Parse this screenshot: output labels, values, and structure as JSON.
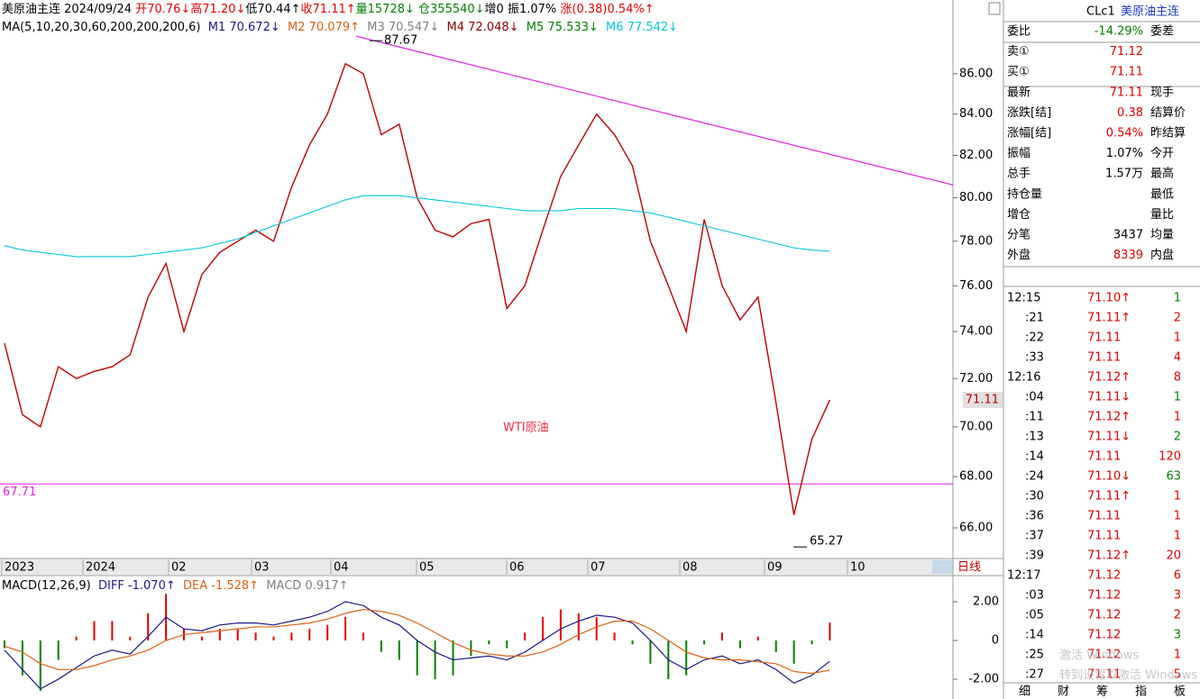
{
  "header": {
    "quote_line": [
      {
        "text": "美原油主连 2024/09/24 ",
        "color": "#000000"
      },
      {
        "text": "开70.76↓",
        "color": "#e00000"
      },
      {
        "text": "高71.20↓",
        "color": "#e00000"
      },
      {
        "text": "低70.44↑",
        "color": "#000000"
      },
      {
        "text": "收71.11↑",
        "color": "#e00000"
      },
      {
        "text": "量15728↓",
        "color": "#008000"
      },
      {
        "text": " 仓355540↓",
        "color": "#008000"
      },
      {
        "text": "增0 振1.07% ",
        "color": "#000000"
      },
      {
        "text": "涨(0.38)0.54%↑",
        "color": "#e00000"
      }
    ],
    "ma_line": [
      {
        "text": "MA(5,10,20,30,60,200,200,200,6)",
        "color": "#000000"
      },
      {
        "text": "  M1 70.672↓",
        "color": "#1a1a8c"
      },
      {
        "text": "  M2 70.079↑",
        "color": "#e06010"
      },
      {
        "text": "  M3 70.547↓",
        "color": "#808080"
      },
      {
        "text": "  M4 72.048↓",
        "color": "#8b0000"
      },
      {
        "text": "  M5 75.533↓",
        "color": "#008000"
      },
      {
        "text": "  M6 77.542↓",
        "color": "#00c8d8"
      }
    ]
  },
  "chart_data": [
    {
      "type": "line",
      "title": "WTI原油",
      "log_scale": true,
      "ylim": [
        64.9,
        88.93
      ],
      "yticks": [
        {
          "value": 86,
          "label": "86.00"
        },
        {
          "value": 84,
          "label": "84.00"
        },
        {
          "value": 82,
          "label": "82.00"
        },
        {
          "value": 80,
          "label": "80.00"
        },
        {
          "value": 78,
          "label": "78.00"
        },
        {
          "value": 76,
          "label": "76.00"
        },
        {
          "value": 74,
          "label": "74.00"
        },
        {
          "value": 72,
          "label": "72.00"
        },
        {
          "value": 70,
          "label": "70.00"
        },
        {
          "value": 68,
          "label": "68.00"
        },
        {
          "value": 66,
          "label": "66.00"
        }
      ],
      "x_labels": [
        "2023",
        "2024",
        "02",
        "03",
        "04",
        "05",
        "06",
        "07",
        "08",
        "09",
        "10"
      ],
      "series": [
        {
          "color": "#c00000",
          "values": [
            73.5,
            70.5,
            70,
            72.5,
            72,
            72.3,
            72.5,
            73,
            75.5,
            77,
            74,
            76.5,
            77.5,
            78,
            78.5,
            78,
            80.5,
            82.5,
            84,
            86.5,
            86,
            83,
            83.5,
            80,
            78.5,
            78.2,
            78.8,
            79,
            75,
            76,
            78.5,
            81,
            82.5,
            84,
            83,
            81.5,
            78,
            76,
            74,
            79,
            76,
            74.5,
            75.5,
            71,
            66.5,
            69.5,
            71.11
          ]
        },
        {
          "color": "#00c8d8",
          "values": [
            77.8,
            77.6,
            77.5,
            77.4,
            77.3,
            77.3,
            77.3,
            77.3,
            77.4,
            77.5,
            77.6,
            77.7,
            77.9,
            78.1,
            78.4,
            78.7,
            79.0,
            79.3,
            79.6,
            79.9,
            80.1,
            80.1,
            80.1,
            80.0,
            79.9,
            79.8,
            79.7,
            79.6,
            79.5,
            79.4,
            79.4,
            79.4,
            79.5,
            79.5,
            79.5,
            79.4,
            79.3,
            79.1,
            78.9,
            78.7,
            78.5,
            78.3,
            78.1,
            77.9,
            77.7,
            77.6,
            77.542
          ]
        }
      ],
      "high": 87.67,
      "low": 65.27,
      "support": 67.71,
      "last_price": 71.11,
      "trendline": [
        87.9,
        80.6
      ],
      "line_color": "#e020e0",
      "period_tab": "日线"
    },
    {
      "type": "bar",
      "legend": [
        {
          "text": "MACD(12,26,9)",
          "color": "#000000"
        },
        {
          "text": "  DIFF -1.070↑",
          "color": "#1a1a8c"
        },
        {
          "text": "  DEA -1.528↑",
          "color": "#e06010"
        },
        {
          "text": "  MACD 0.917↑",
          "color": "#808080"
        }
      ],
      "ylim": [
        -3.02,
        3.3
      ],
      "yticks": [
        {
          "value": 2,
          "label": "2.00"
        },
        0,
        {
          "value": -2,
          "label": "-2.00"
        }
      ],
      "up_color": "#e00000",
      "down_color": "#008000",
      "values": [
        -0.4,
        -1.8,
        -2.6,
        -1.0,
        0.2,
        1.0,
        1.0,
        0.2,
        1.4,
        2.4,
        0.6,
        0.2,
        0.6,
        0.6,
        0.4,
        0.2,
        0.4,
        0.6,
        0.8,
        1.2,
        0.4,
        -0.6,
        -1.0,
        -1.8,
        -2.0,
        -1.8,
        -0.8,
        -0.2,
        -0.4,
        0.4,
        1.2,
        1.6,
        1.4,
        1.2,
        0.4,
        -0.2,
        -1.2,
        -2.0,
        -1.8,
        -0.2,
        0.4,
        -0.4,
        0.2,
        -0.6,
        -1.2,
        -0.2,
        0.917
      ],
      "series": [
        {
          "color": "#1a1a8c",
          "values": [
            -0.5,
            -1.5,
            -2.5,
            -2.0,
            -1.4,
            -0.8,
            -0.5,
            -0.7,
            0.2,
            1.2,
            0.6,
            0.5,
            0.8,
            0.9,
            0.9,
            0.8,
            1.0,
            1.2,
            1.5,
            2.0,
            1.8,
            1.2,
            0.8,
            0.0,
            -0.6,
            -1.0,
            -0.9,
            -0.8,
            -1.0,
            -0.6,
            0.0,
            0.6,
            1.0,
            1.3,
            1.2,
            0.9,
            0.0,
            -1.0,
            -1.5,
            -1.0,
            -0.8,
            -1.2,
            -1.0,
            -1.5,
            -2.2,
            -1.8,
            -1.07
          ]
        },
        {
          "color": "#e06010",
          "values": [
            -0.3,
            -0.6,
            -1.2,
            -1.5,
            -1.5,
            -1.3,
            -1.0,
            -0.8,
            -0.5,
            0.0,
            0.3,
            0.4,
            0.5,
            0.6,
            0.7,
            0.7,
            0.8,
            0.9,
            1.1,
            1.4,
            1.6,
            1.5,
            1.3,
            0.9,
            0.4,
            -0.1,
            -0.5,
            -0.7,
            -0.8,
            -0.8,
            -0.6,
            -0.2,
            0.3,
            0.7,
            1.0,
            1.0,
            0.6,
            0.0,
            -0.6,
            -0.9,
            -1.0,
            -1.0,
            -1.1,
            -1.2,
            -1.6,
            -1.7,
            -1.528
          ]
        }
      ]
    }
  ],
  "side": {
    "code": "CLc1",
    "name": "美原油主连",
    "quote_rows": [
      {
        "label": "委比",
        "value": "-14.29%",
        "value_color": "#008000",
        "label2": "委差"
      },
      {
        "label": "卖①",
        "value": "71.12",
        "value_color": "#e00000"
      },
      {
        "label": "买①",
        "value": "71.11",
        "value_color": "#e00000"
      },
      {
        "label": "最新",
        "value": "71.11",
        "value_color": "#e00000",
        "label2": "现手"
      },
      {
        "label": "涨跌[结]",
        "value": "0.38",
        "value_color": "#e00000",
        "label2": "结算价"
      },
      {
        "label": "涨幅[结]",
        "value": "0.54%",
        "value_color": "#e00000",
        "label2": "昨结算"
      },
      {
        "label": "振幅",
        "value": "1.07%",
        "value_color": "#000000",
        "label2": "今开"
      },
      {
        "label": "总手",
        "value": "1.57万",
        "value_color": "#000000",
        "label2": "最高"
      },
      {
        "label": "持仓量",
        "label2": "最低"
      },
      {
        "label": "增仓",
        "label2": "量比"
      },
      {
        "label": "分笔",
        "value": "3437",
        "value_color": "#000000",
        "label2": "均量"
      },
      {
        "label": "外盘",
        "value": "8339",
        "value_color": "#e00000",
        "label2": "内盘"
      }
    ],
    "trades": [
      {
        "time": "12:15",
        "price": "71.10↑",
        "price_color": "#e00000",
        "volume": 1,
        "volume_color": "#008000"
      },
      {
        "time": ":21",
        "price": "71.11↑",
        "price_color": "#e00000",
        "volume": 2,
        "volume_color": "#e00000"
      },
      {
        "time": ":22",
        "price": "71.11",
        "price_color": "#e00000",
        "volume": 1,
        "volume_color": "#e00000"
      },
      {
        "time": ":33",
        "price": "71.11",
        "price_color": "#e00000",
        "volume": 4,
        "volume_color": "#e00000"
      },
      {
        "time": "12:16",
        "price": "71.12↑",
        "price_color": "#e00000",
        "volume": 8,
        "volume_color": "#e00000"
      },
      {
        "time": ":04",
        "price": "71.11↓",
        "price_color": "#e00000",
        "volume": 1,
        "volume_color": "#008000"
      },
      {
        "time": ":11",
        "price": "71.12↑",
        "price_color": "#e00000",
        "volume": 1,
        "volume_color": "#e00000"
      },
      {
        "time": ":13",
        "price": "71.11↓",
        "price_color": "#e00000",
        "volume": 2,
        "volume_color": "#008000"
      },
      {
        "time": ":14",
        "price": "71.11",
        "price_color": "#e00000",
        "volume": 120,
        "volume_color": "#e00000"
      },
      {
        "time": ":24",
        "price": "71.10↓",
        "price_color": "#e00000",
        "volume": 63,
        "volume_color": "#008000"
      },
      {
        "time": ":30",
        "price": "71.11↑",
        "price_color": "#e00000",
        "volume": 1,
        "volume_color": "#e00000"
      },
      {
        "time": ":36",
        "price": "71.11",
        "price_color": "#e00000",
        "volume": 1,
        "volume_color": "#e00000"
      },
      {
        "time": ":37",
        "price": "71.11",
        "price_color": "#e00000",
        "volume": 1,
        "volume_color": "#e00000"
      },
      {
        "time": ":39",
        "price": "71.12↑",
        "price_color": "#e00000",
        "volume": 20,
        "volume_color": "#e00000"
      },
      {
        "time": "12:17",
        "price": "71.12",
        "price_color": "#e00000",
        "volume": 6,
        "volume_color": "#e00000"
      },
      {
        "time": ":03",
        "price": "71.12",
        "price_color": "#e00000",
        "volume": 3,
        "volume_color": "#e00000"
      },
      {
        "time": ":05",
        "price": "71.12",
        "price_color": "#e00000",
        "volume": 2,
        "volume_color": "#e00000"
      },
      {
        "time": ":14",
        "price": "71.12",
        "price_color": "#e00000",
        "volume": 3,
        "volume_color": "#008000"
      },
      {
        "time": ":25",
        "price": "71.12",
        "price_color": "#e00000",
        "volume": 1,
        "volume_color": "#e00000"
      },
      {
        "time": ":27",
        "price": "71.11",
        "price_color": "#e00000",
        "volume": 5,
        "volume_color": "#e00000"
      }
    ],
    "tabs": [
      "细",
      "财",
      "筹",
      "指",
      "板"
    ]
  },
  "watermark": [
    "激活 Windows",
    "转到设置以激活 Windows"
  ]
}
